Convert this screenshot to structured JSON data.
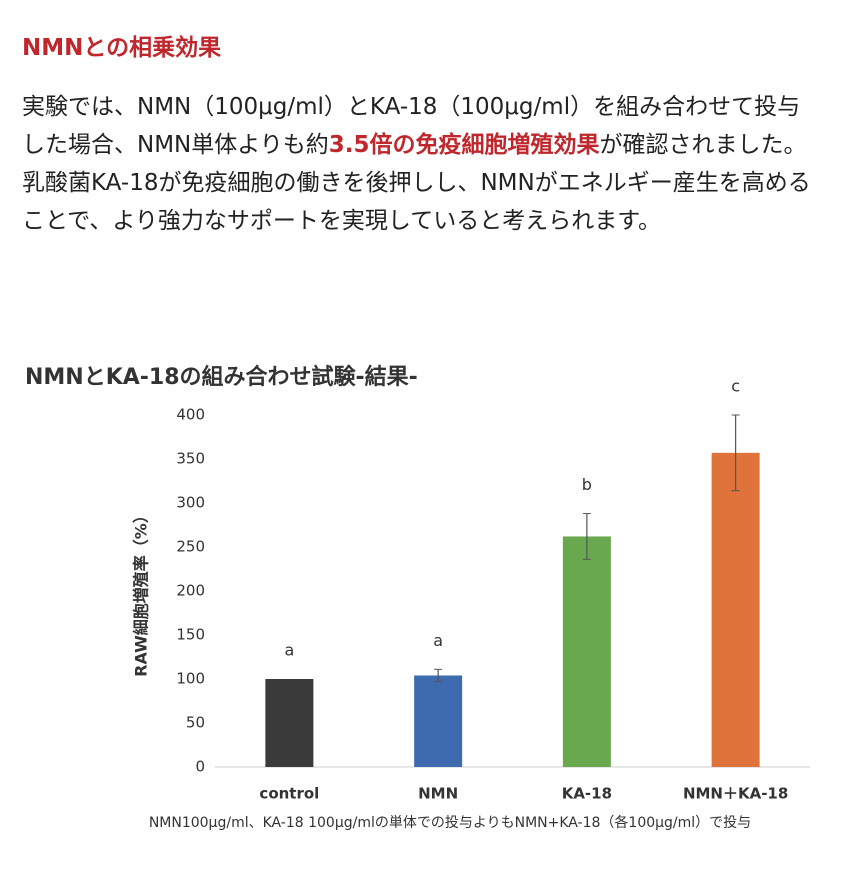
{
  "header": {
    "title": "NMNとの相乗効果"
  },
  "body": {
    "paragraph1": {
      "before": "実験では、NMN（100μg/ml）とKA-18（100μg/ml）を組み合わせて投与した場合、NMN単体よりも約",
      "highlight": "3.5倍の免疫細胞増殖効果",
      "after": "が確認されました。"
    },
    "paragraph2": "乳酸菌KA-18が免疫細胞の働きを後押しし、NMNがエネルギー産生を高めることで、より強力なサポートを実現していると考えられます。"
  },
  "chart_data": {
    "type": "bar",
    "title": "NMNとKA-18の組み合わせ試験-結果-",
    "y_label": "RAW細胞増殖率（%）",
    "categories": [
      "control",
      "NMN",
      "KA-18",
      "NMN＋KA-18"
    ],
    "values": [
      100,
      104,
      262,
      357
    ],
    "errors": [
      0,
      7,
      26,
      43
    ],
    "significance_labels": [
      "a",
      "a",
      "b",
      "c"
    ],
    "colors": [
      "#3a3a3a",
      "#3e6bb0",
      "#6aa84f",
      "#e0733b"
    ],
    "ylim": [
      0,
      400
    ],
    "yticks": [
      0,
      50,
      100,
      150,
      200,
      250,
      300,
      350,
      400
    ],
    "caption": "NMN100μg/ml、KA-18 100μg/mlの単体での投与よりもNMN+KA-18（各100μg/ml）で投与"
  }
}
